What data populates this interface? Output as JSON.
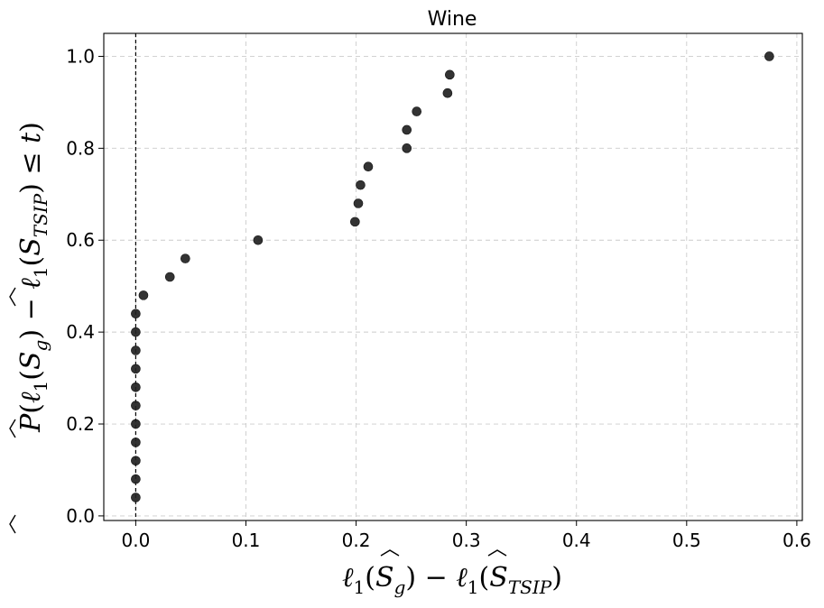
{
  "chart_data": {
    "type": "scatter",
    "title": "Wine",
    "xlabel": "ℓ₁(Ŝ_g) − ℓ₁(Ŝ_TSIP)",
    "ylabel": "P̂(ℓ₁(Ŝ_g) − ℓ₁(Ŝ_TSIP) ≤ t)",
    "xlim": [
      -0.029,
      0.605
    ],
    "ylim": [
      -0.01,
      1.05
    ],
    "x_ticks": [
      0.0,
      0.1,
      0.2,
      0.3,
      0.4,
      0.5,
      0.6
    ],
    "x_tick_labels": [
      "0.0",
      "0.1",
      "0.2",
      "0.3",
      "0.4",
      "0.5",
      "0.6"
    ],
    "y_ticks": [
      0.0,
      0.2,
      0.4,
      0.6,
      0.8,
      1.0
    ],
    "y_tick_labels": [
      "0.0",
      "0.2",
      "0.4",
      "0.6",
      "0.8",
      "1.0"
    ],
    "grid": true,
    "reference_line": {
      "orientation": "vertical",
      "x": 0.0,
      "style": "dashed"
    },
    "marker_color": "#222222",
    "points": [
      {
        "x": 0.0,
        "y": 0.04
      },
      {
        "x": 0.0,
        "y": 0.08
      },
      {
        "x": 0.0,
        "y": 0.12
      },
      {
        "x": 0.0,
        "y": 0.16
      },
      {
        "x": 0.0,
        "y": 0.2
      },
      {
        "x": 0.0,
        "y": 0.24
      },
      {
        "x": 0.0,
        "y": 0.28
      },
      {
        "x": 0.0,
        "y": 0.32
      },
      {
        "x": 0.0,
        "y": 0.36
      },
      {
        "x": 0.0,
        "y": 0.4
      },
      {
        "x": 0.0,
        "y": 0.44
      },
      {
        "x": 0.007,
        "y": 0.48
      },
      {
        "x": 0.031,
        "y": 0.52
      },
      {
        "x": 0.045,
        "y": 0.56
      },
      {
        "x": 0.111,
        "y": 0.6
      },
      {
        "x": 0.199,
        "y": 0.64
      },
      {
        "x": 0.202,
        "y": 0.68
      },
      {
        "x": 0.204,
        "y": 0.72
      },
      {
        "x": 0.211,
        "y": 0.76
      },
      {
        "x": 0.246,
        "y": 0.8
      },
      {
        "x": 0.246,
        "y": 0.84
      },
      {
        "x": 0.255,
        "y": 0.88
      },
      {
        "x": 0.283,
        "y": 0.92
      },
      {
        "x": 0.285,
        "y": 0.96
      },
      {
        "x": 0.575,
        "y": 1.0
      }
    ]
  }
}
